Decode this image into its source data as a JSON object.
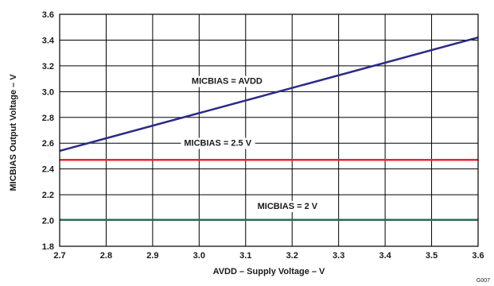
{
  "chart_data": {
    "type": "line",
    "xlabel": "AVDD – Supply Voltage – V",
    "ylabel": "MICBIAS Output Voltage – V",
    "xlim": [
      2.7,
      3.6
    ],
    "ylim": [
      1.8,
      3.6
    ],
    "x_ticks": [
      "2.7",
      "2.8",
      "2.9",
      "3.0",
      "3.1",
      "3.2",
      "3.3",
      "3.4",
      "3.5",
      "3.6"
    ],
    "y_ticks": [
      "1.8",
      "2.0",
      "2.2",
      "2.4",
      "2.6",
      "2.8",
      "3.0",
      "3.2",
      "3.4",
      "3.6"
    ],
    "grid": true,
    "series": [
      {
        "name": "MICBIAS = AVDD",
        "color": "#2b2a86",
        "x": [
          2.7,
          3.6
        ],
        "y": [
          2.54,
          3.42
        ]
      },
      {
        "name": "MICBIAS = 2.5 V",
        "color": "#e8262d",
        "x": [
          2.7,
          3.6
        ],
        "y": [
          2.47,
          2.47
        ]
      },
      {
        "name": "MICBIAS = 2 V",
        "color": "#2e6b4f",
        "x": [
          2.7,
          3.6
        ],
        "y": [
          2.005,
          2.005
        ]
      }
    ],
    "annotations": [
      {
        "text": "MICBIAS = AVDD",
        "series": 0
      },
      {
        "text": "MICBIAS = 2.5 V",
        "series": 1
      },
      {
        "text": "MICBIAS = 2 V",
        "series": 2
      }
    ]
  },
  "figure_id": "G007"
}
